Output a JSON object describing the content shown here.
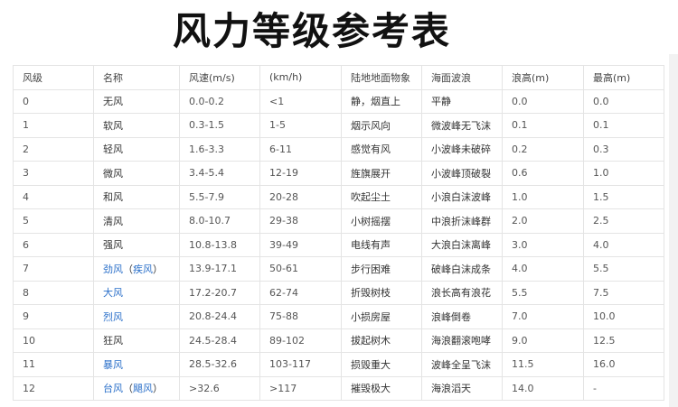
{
  "title": "风力等级参考表",
  "colors": {
    "link": "#2a6fc9",
    "border": "#e4e4e4"
  },
  "headers": [
    "风级",
    "名称",
    "风速(m/s)",
    "(km/h)",
    "陆地地面物象",
    "海面波浪",
    "浪高(m)",
    "最高(m)"
  ],
  "rows": [
    {
      "level": "0",
      "name": [
        {
          "t": "无风"
        }
      ],
      "ms": "0.0-0.2",
      "kmh": "<1",
      "land": "静，烟直上",
      "sea": "平静",
      "wave": "0.0",
      "max": "0.0"
    },
    {
      "level": "1",
      "name": [
        {
          "t": "软风"
        }
      ],
      "ms": "0.3-1.5",
      "kmh": "1-5",
      "land": "烟示风向",
      "sea": "微波峰无飞沫",
      "wave": "0.1",
      "max": "0.1"
    },
    {
      "level": "2",
      "name": [
        {
          "t": "轻风"
        }
      ],
      "ms": "1.6-3.3",
      "kmh": "6-11",
      "land": "感觉有风",
      "sea": "小波峰未破碎",
      "wave": "0.2",
      "max": "0.3"
    },
    {
      "level": "3",
      "name": [
        {
          "t": "微风"
        }
      ],
      "ms": "3.4-5.4",
      "kmh": "12-19",
      "land": "旌旗展开",
      "sea": "小波峰顶破裂",
      "wave": "0.6",
      "max": "1.0"
    },
    {
      "level": "4",
      "name": [
        {
          "t": "和风"
        }
      ],
      "ms": "5.5-7.9",
      "kmh": "20-28",
      "land": "吹起尘土",
      "sea": "小浪白沫波峰",
      "wave": "1.0",
      "max": "1.5"
    },
    {
      "level": "5",
      "name": [
        {
          "t": "清风"
        }
      ],
      "ms": "8.0-10.7",
      "kmh": "29-38",
      "land": "小树摇摆",
      "sea": "中浪折沫峰群",
      "wave": "2.0",
      "max": "2.5"
    },
    {
      "level": "6",
      "name": [
        {
          "t": "强风"
        }
      ],
      "ms": "10.8-13.8",
      "kmh": "39-49",
      "land": "电线有声",
      "sea": "大浪白沫离峰",
      "wave": "3.0",
      "max": "4.0"
    },
    {
      "level": "7",
      "name": [
        {
          "t": "劲风",
          "link": true
        },
        {
          "t": "（"
        },
        {
          "t": "疾风",
          "link": true
        },
        {
          "t": "）"
        }
      ],
      "ms": "13.9-17.1",
      "kmh": "50-61",
      "land": "步行困难",
      "sea": "破峰白沫成条",
      "wave": "4.0",
      "max": "5.5"
    },
    {
      "level": "8",
      "name": [
        {
          "t": "大风",
          "link": true
        }
      ],
      "ms": "17.2-20.7",
      "kmh": "62-74",
      "land": "折毁树枝",
      "sea": "浪长高有浪花",
      "wave": "5.5",
      "max": "7.5"
    },
    {
      "level": "9",
      "name": [
        {
          "t": "烈风",
          "link": true
        }
      ],
      "ms": "20.8-24.4",
      "kmh": "75-88",
      "land": "小损房屋",
      "sea": "浪峰倒卷",
      "wave": "7.0",
      "max": "10.0"
    },
    {
      "level": "10",
      "name": [
        {
          "t": "狂风"
        }
      ],
      "ms": "24.5-28.4",
      "kmh": "89-102",
      "land": "拔起树木",
      "sea": "海浪翻滚咆哮",
      "wave": "9.0",
      "max": "12.5"
    },
    {
      "level": "11",
      "name": [
        {
          "t": "暴风",
          "link": true
        }
      ],
      "ms": "28.5-32.6",
      "kmh": "103-117",
      "land": "损毁重大",
      "sea": "波峰全呈飞沫",
      "wave": "11.5",
      "max": "16.0"
    },
    {
      "level": "12",
      "name": [
        {
          "t": "台风",
          "link": true
        },
        {
          "t": "（"
        },
        {
          "t": "飓风",
          "link": true
        },
        {
          "t": "）"
        }
      ],
      "ms": ">32.6",
      "kmh": ">117",
      "land": "摧毁极大",
      "sea": "海浪滔天",
      "wave": "14.0",
      "max": "-"
    }
  ]
}
